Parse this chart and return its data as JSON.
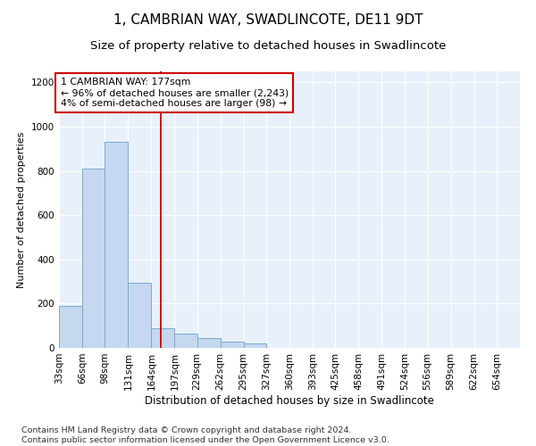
{
  "title": "1, CAMBRIAN WAY, SWADLINCOTE, DE11 9DT",
  "subtitle": "Size of property relative to detached houses in Swadlincote",
  "xlabel": "Distribution of detached houses by size in Swadlincote",
  "ylabel": "Number of detached properties",
  "footer_line1": "Contains HM Land Registry data © Crown copyright and database right 2024.",
  "footer_line2": "Contains public sector information licensed under the Open Government Licence v3.0.",
  "annotation_line1": "1 CAMBRIAN WAY: 177sqm",
  "annotation_line2": "← 96% of detached houses are smaller (2,243)",
  "annotation_line3": "4% of semi-detached houses are larger (98) →",
  "bin_edges": [
    33,
    66,
    98,
    131,
    164,
    197,
    229,
    262,
    295,
    327,
    360,
    393,
    425,
    458,
    491,
    524,
    556,
    589,
    622,
    654,
    687
  ],
  "bin_counts": [
    190,
    810,
    930,
    295,
    90,
    65,
    45,
    30,
    20,
    0,
    0,
    0,
    0,
    0,
    0,
    0,
    0,
    0,
    0,
    0
  ],
  "bar_facecolor": "#c5d8f0",
  "bar_edgecolor": "#7aabcf",
  "vline_color": "#cc0000",
  "vline_x": 177,
  "annotation_box_edgecolor": "#cc0000",
  "ylim": [
    0,
    1250
  ],
  "yticks": [
    0,
    200,
    400,
    600,
    800,
    1000,
    1200
  ],
  "xlim_left": 33,
  "xlim_right": 687,
  "plot_bg": "#e8f0fb",
  "grid_color": "#ffffff",
  "title_fontsize": 11,
  "subtitle_fontsize": 9.5,
  "axis_label_fontsize": 8.5,
  "ylabel_fontsize": 8,
  "tick_fontsize": 7.5,
  "annotation_fontsize": 7.8,
  "footer_fontsize": 6.8
}
